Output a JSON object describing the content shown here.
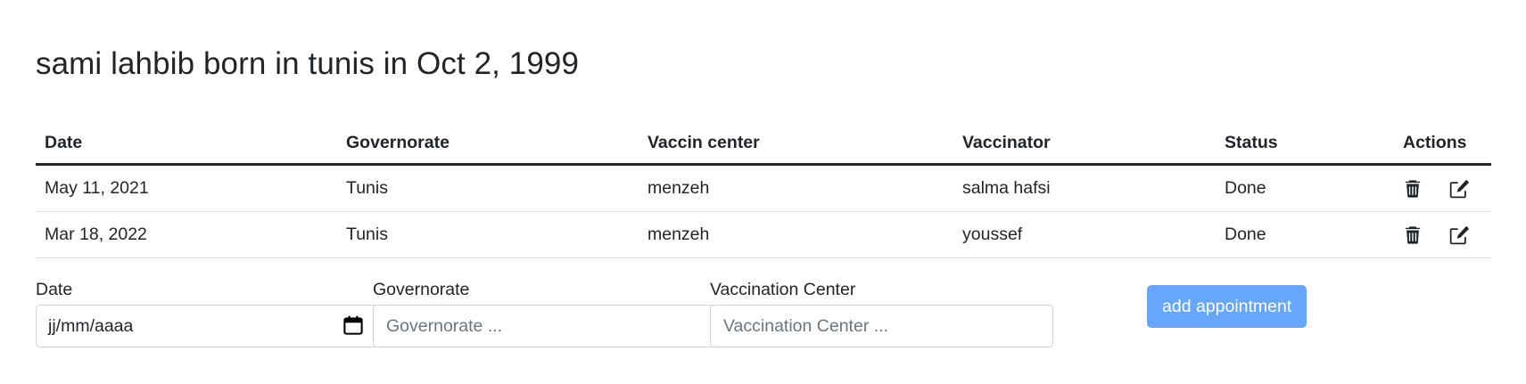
{
  "page": {
    "title": "sami lahbib born in tunis in Oct 2, 1999"
  },
  "table": {
    "headers": {
      "date": "Date",
      "governorate": "Governorate",
      "center": "Vaccin center",
      "vaccinator": "Vaccinator",
      "status": "Status",
      "actions": "Actions"
    },
    "rows": [
      {
        "date": "May 11, 2021",
        "governorate": "Tunis",
        "center": "menzeh",
        "vaccinator": "salma hafsi",
        "status": "Done"
      },
      {
        "date": "Mar 18, 2022",
        "governorate": "Tunis",
        "center": "menzeh",
        "vaccinator": "youssef",
        "status": "Done"
      }
    ],
    "row_icons": [
      "trash-icon",
      "edit-icon"
    ]
  },
  "form": {
    "date": {
      "label": "Date",
      "value": "jj/mm/aaaa",
      "icon": "calendar-icon"
    },
    "governorate": {
      "label": "Governorate",
      "placeholder": "Governorate ..."
    },
    "center": {
      "label": "Vaccination Center",
      "placeholder": "Vaccination Center ..."
    },
    "submit_label": "add appointment"
  },
  "colors": {
    "text": "#212529",
    "button_bg": "#66a7fb",
    "button_text": "#ffffff",
    "border": "#dee2e6",
    "input_border": "#ced4da"
  }
}
